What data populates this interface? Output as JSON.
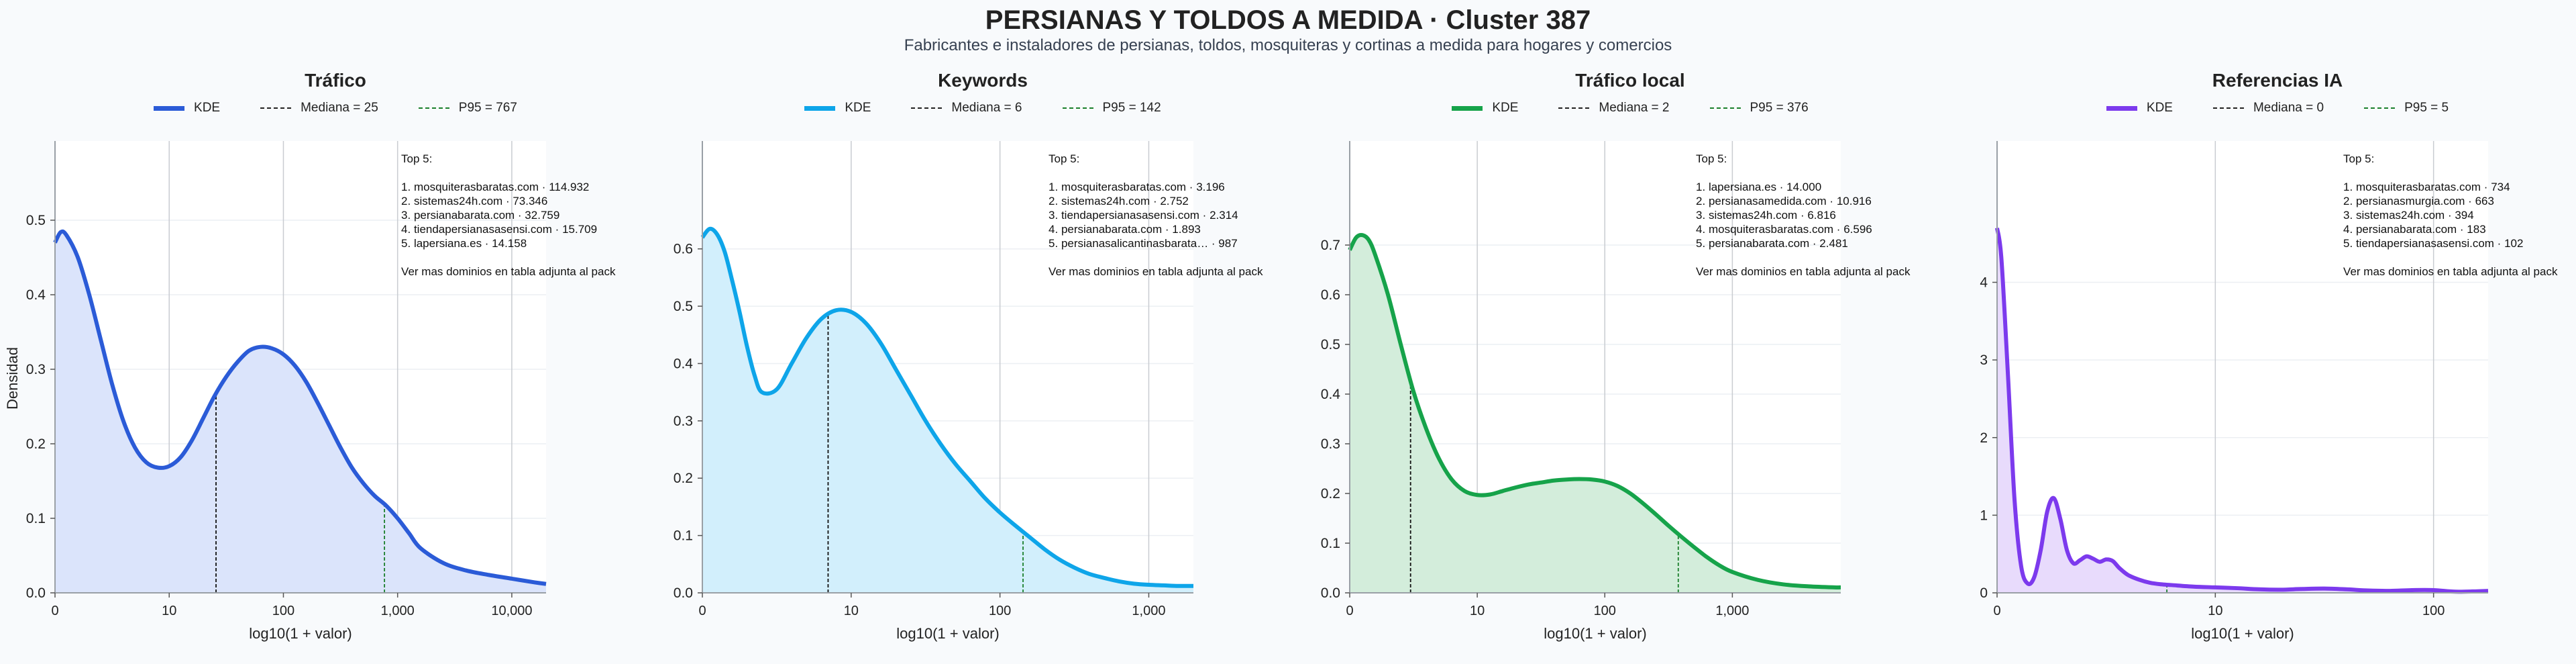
{
  "title": "PERSIANAS Y TOLDOS A MEDIDA · Cluster 387",
  "subtitle": "Fabricantes e instaladores de persianas, toldos, mosquiteras y cortinas a medida para hogares y comercios",
  "ylabel": "Densidad",
  "legend_labels": {
    "kde": "KDE"
  },
  "more_note": "Ver mas dominios en tabla adjunta al pack",
  "top_label": "Top 5:",
  "chart_data": [
    {
      "type": "area",
      "title": "Tráfico",
      "color": "#2b5bd7",
      "fill": "#dbe4fb",
      "xlabel": "log10(1 + valor)",
      "ylabel": "Densidad",
      "x_scale": "log10(1+value)",
      "xlim": [
        0,
        4.3
      ],
      "ylim": [
        0,
        0.5
      ],
      "xticks": [
        "0",
        "10",
        "100",
        "1,000",
        "10,000"
      ],
      "xtick_values": [
        0,
        1,
        2,
        3,
        4
      ],
      "yticks": [
        "0.0",
        "0.1",
        "0.2",
        "0.3",
        "0.4",
        "0.5"
      ],
      "ytick_values": [
        0,
        0.1,
        0.2,
        0.3,
        0.4,
        0.5
      ],
      "median_label": "Mediana = 25",
      "median": 1.41,
      "p95_label": "P95 = 767",
      "p95": 2.885,
      "kde": {
        "x": [
          0,
          0.05,
          0.1,
          0.2,
          0.3,
          0.4,
          0.5,
          0.6,
          0.7,
          0.8,
          0.9,
          1.0,
          1.1,
          1.2,
          1.3,
          1.4,
          1.5,
          1.6,
          1.7,
          1.8,
          1.9,
          2.0,
          2.1,
          2.2,
          2.3,
          2.4,
          2.5,
          2.6,
          2.7,
          2.8,
          2.9,
          3.0,
          3.1,
          3.2,
          3.4,
          3.6,
          3.8,
          4.0,
          4.2,
          4.3
        ],
        "y": [
          0.47,
          0.484,
          0.48,
          0.45,
          0.4,
          0.34,
          0.28,
          0.23,
          0.195,
          0.175,
          0.168,
          0.17,
          0.182,
          0.205,
          0.235,
          0.265,
          0.29,
          0.31,
          0.325,
          0.33,
          0.328,
          0.32,
          0.305,
          0.283,
          0.255,
          0.225,
          0.195,
          0.168,
          0.147,
          0.13,
          0.117,
          0.1,
          0.08,
          0.06,
          0.04,
          0.03,
          0.024,
          0.019,
          0.014,
          0.012
        ]
      },
      "top5": [
        "1. mosquiterasbaratas.com · 114.932",
        "2. sistemas24h.com · 73.346",
        "3. persianabarata.com · 32.759",
        "4. tiendapersianasasensi.com · 15.709",
        "5. lapersiana.es · 14.158"
      ]
    },
    {
      "type": "area",
      "title": "Keywords",
      "color": "#0ea5e9",
      "fill": "#d2effc",
      "xlabel": "log10(1 + valor)",
      "x_scale": "log10(1+value)",
      "xlim": [
        0,
        3.3
      ],
      "ylim": [
        0,
        0.65
      ],
      "xticks": [
        "0",
        "10",
        "100",
        "1,000"
      ],
      "xtick_values": [
        0,
        1,
        2,
        3
      ],
      "yticks": [
        "0.0",
        "0.1",
        "0.2",
        "0.3",
        "0.4",
        "0.5",
        "0.6"
      ],
      "ytick_values": [
        0,
        0.1,
        0.2,
        0.3,
        0.4,
        0.5,
        0.6
      ],
      "median_label": "Mediana = 6",
      "median": 0.845,
      "p95_label": "P95 = 142",
      "p95": 2.155,
      "kde": {
        "x": [
          0,
          0.05,
          0.1,
          0.15,
          0.2,
          0.25,
          0.3,
          0.35,
          0.4,
          0.5,
          0.6,
          0.7,
          0.8,
          0.9,
          1.0,
          1.1,
          1.2,
          1.3,
          1.4,
          1.5,
          1.6,
          1.7,
          1.8,
          1.9,
          2.0,
          2.1,
          2.2,
          2.3,
          2.4,
          2.5,
          2.6,
          2.7,
          2.8,
          2.9,
          3.0,
          3.1,
          3.2,
          3.3
        ],
        "y": [
          0.62,
          0.635,
          0.625,
          0.595,
          0.545,
          0.49,
          0.43,
          0.38,
          0.35,
          0.355,
          0.4,
          0.445,
          0.478,
          0.493,
          0.49,
          0.47,
          0.435,
          0.39,
          0.345,
          0.3,
          0.26,
          0.225,
          0.195,
          0.165,
          0.14,
          0.118,
          0.097,
          0.076,
          0.058,
          0.044,
          0.033,
          0.026,
          0.02,
          0.016,
          0.014,
          0.013,
          0.012,
          0.012
        ]
      },
      "top5": [
        "1. mosquiterasbaratas.com · 3.196",
        "2. sistemas24h.com · 2.752",
        "3. tiendapersianasasensi.com · 2.314",
        "4. persianabarata.com · 1.893",
        "5. persianasalicantinasbarata… · 987"
      ]
    },
    {
      "type": "area",
      "title": "Tráfico local",
      "color": "#16a34a",
      "fill": "#d3eddb",
      "xlabel": "log10(1 + valor)",
      "x_scale": "log10(1+value)",
      "xlim": [
        0,
        3.85
      ],
      "ylim": [
        0,
        0.75
      ],
      "xticks": [
        "0",
        "10",
        "100",
        "1,000"
      ],
      "xtick_values": [
        0,
        1,
        2,
        3
      ],
      "yticks": [
        "0.0",
        "0.1",
        "0.2",
        "0.3",
        "0.4",
        "0.5",
        "0.6",
        "0.7"
      ],
      "ytick_values": [
        0,
        0.1,
        0.2,
        0.3,
        0.4,
        0.5,
        0.6,
        0.7
      ],
      "median_label": "Mediana = 2",
      "median": 0.477,
      "p95_label": "P95 = 376",
      "p95": 2.576,
      "kde": {
        "x": [
          0,
          0.05,
          0.1,
          0.15,
          0.2,
          0.3,
          0.4,
          0.5,
          0.6,
          0.7,
          0.8,
          0.9,
          1.0,
          1.1,
          1.2,
          1.3,
          1.4,
          1.5,
          1.6,
          1.7,
          1.8,
          1.9,
          2.0,
          2.1,
          2.2,
          2.3,
          2.4,
          2.5,
          2.6,
          2.7,
          2.8,
          2.9,
          3.0,
          3.2,
          3.4,
          3.6,
          3.8,
          3.85
        ],
        "y": [
          0.69,
          0.715,
          0.72,
          0.71,
          0.68,
          0.6,
          0.5,
          0.405,
          0.33,
          0.27,
          0.228,
          0.205,
          0.197,
          0.198,
          0.205,
          0.212,
          0.218,
          0.222,
          0.226,
          0.228,
          0.229,
          0.228,
          0.224,
          0.215,
          0.2,
          0.18,
          0.158,
          0.135,
          0.113,
          0.092,
          0.072,
          0.055,
          0.042,
          0.026,
          0.017,
          0.013,
          0.011,
          0.011
        ]
      },
      "top5": [
        "1. lapersiana.es · 14.000",
        "2. persianasamedida.com · 10.916",
        "3. sistemas24h.com · 6.816",
        "4. mosquiterasbaratas.com · 6.596",
        "5. persianabarata.com · 2.481"
      ]
    },
    {
      "type": "area",
      "title": "Referencias IA",
      "color": "#7c3aed",
      "fill": "#e8dbfc",
      "xlabel": "",
      "x_scale": "log10(1+value)",
      "xlim": [
        0,
        2.25
      ],
      "ylim": [
        0,
        4.8
      ],
      "xticks": [
        "0",
        "10",
        "100"
      ],
      "xtick_values": [
        0,
        1,
        2
      ],
      "yticks": [
        "0",
        "1",
        "2",
        "3",
        "4"
      ],
      "ytick_values": [
        0,
        1,
        2,
        3,
        4
      ],
      "median_label": "Mediana = 0",
      "median": 0,
      "p95_label": "P95 = 5",
      "p95": 0.778,
      "kde": {
        "x": [
          0,
          0.02,
          0.05,
          0.08,
          0.11,
          0.14,
          0.17,
          0.2,
          0.23,
          0.26,
          0.29,
          0.32,
          0.35,
          0.38,
          0.41,
          0.44,
          0.47,
          0.5,
          0.53,
          0.56,
          0.6,
          0.65,
          0.7,
          0.75,
          0.8,
          0.9,
          1.0,
          1.1,
          1.2,
          1.3,
          1.4,
          1.5,
          1.6,
          1.7,
          1.8,
          1.9,
          2.0,
          2.1,
          2.2,
          2.25
        ],
        "y": [
          4.7,
          4.3,
          2.8,
          1.2,
          0.35,
          0.12,
          0.2,
          0.55,
          1.05,
          1.22,
          0.95,
          0.55,
          0.38,
          0.42,
          0.47,
          0.44,
          0.4,
          0.43,
          0.41,
          0.32,
          0.23,
          0.17,
          0.13,
          0.11,
          0.1,
          0.08,
          0.07,
          0.06,
          0.045,
          0.04,
          0.05,
          0.055,
          0.045,
          0.03,
          0.025,
          0.035,
          0.035,
          0.015,
          0.02,
          0.025
        ]
      },
      "top5": [
        "1. mosquiterasbaratas.com · 734",
        "2. persianasmurgia.com · 663",
        "3. sistemas24h.com · 394",
        "4. persianabarata.com · 183",
        "5. tiendapersianasasensi.com · 102"
      ]
    }
  ]
}
